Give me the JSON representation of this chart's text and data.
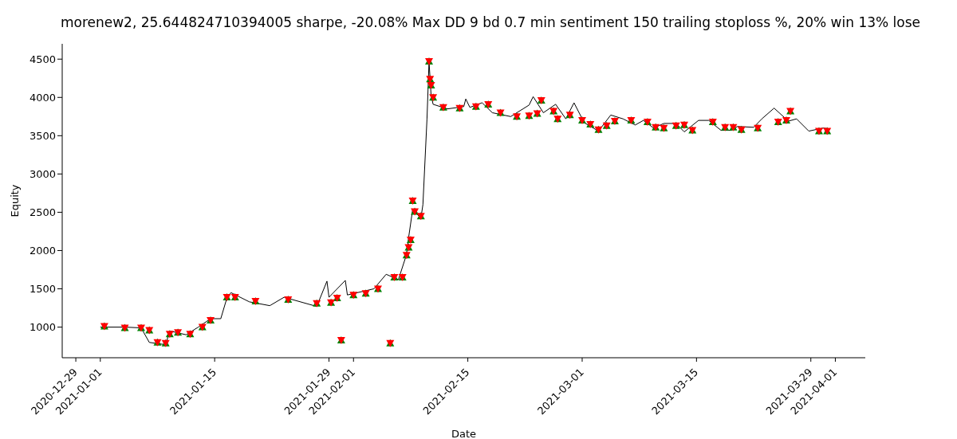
{
  "chart_data": {
    "type": "line",
    "title": "morenew2, 25.644824710394005 sharpe, -20.08% Max DD 9 bd 0.7 min sentiment 150 trailing stoploss %, 20% win 13% lose",
    "xlabel": "Date",
    "ylabel": "Equity",
    "xlim": [
      "2020-12-27T08:00",
      "2021-04-04T16:00"
    ],
    "xticks": [
      "2020-12-29",
      "2021-01-01",
      "2021-01-15",
      "2021-01-29",
      "2021-02-01",
      "2021-02-15",
      "2021-03-01",
      "2021-03-15",
      "2021-03-29",
      "2021-04-01"
    ],
    "ylim": [
      600,
      4700
    ],
    "yticks": [
      1000,
      1500,
      2000,
      2500,
      3000,
      3500,
      4000,
      4500
    ],
    "grid": false,
    "legend": false,
    "series": [
      {
        "color": "#000000",
        "marker": "none",
        "line_style": "solid",
        "x": [
          "2021-01-01T00:00",
          "2021-01-04T00:00",
          "2021-01-06T00:00",
          "2021-01-07T00:00",
          "2021-01-09T00:00",
          "2021-01-09T12:00",
          "2021-01-11T12:00",
          "2021-01-13T00:00",
          "2021-01-14T12:00",
          "2021-01-15T18:00",
          "2021-01-16T12:00",
          "2021-01-17T00:00",
          "2021-01-19T06:00",
          "2021-01-21T18:00",
          "2021-01-23T12:00",
          "2021-01-27T12:00",
          "2021-01-28T18:00",
          "2021-01-29T00:00",
          "2021-01-31T00:00",
          "2021-01-31T06:00",
          "2021-02-03T12:00",
          "2021-02-05T00:00",
          "2021-02-06T12:00",
          "2021-02-07T12:00",
          "2021-02-07T18:00",
          "2021-02-08T06:00",
          "2021-02-09T06:00",
          "2021-02-09T12:00",
          "2021-02-10T00:00",
          "2021-02-10T06:00",
          "2021-02-10T12:00",
          "2021-02-10T18:00",
          "2021-02-12T12:00",
          "2021-02-14T12:00",
          "2021-02-14T18:00",
          "2021-02-15T06:00",
          "2021-02-16T18:00",
          "2021-02-18T00:00",
          "2021-02-20T06:00",
          "2021-02-22T12:00",
          "2021-02-23T00:00",
          "2021-02-24T06:00",
          "2021-02-25T18:00",
          "2021-02-27T00:00",
          "2021-02-28T00:00",
          "2021-03-01T06:00",
          "2021-03-03T00:00",
          "2021-03-04T12:00",
          "2021-03-06T00:00",
          "2021-03-07T12:00",
          "2021-03-08T12:00",
          "2021-03-09T18:00",
          "2021-03-11T00:00",
          "2021-03-12T12:00",
          "2021-03-13T12:00",
          "2021-03-15T06:00",
          "2021-03-16T12:00",
          "2021-03-18T00:00",
          "2021-03-19T06:00",
          "2021-03-20T00:00",
          "2021-03-22T00:00",
          "2021-03-23T00:00",
          "2021-03-24T12:00",
          "2021-03-26T06:00",
          "2021-03-27T06:00",
          "2021-03-28T18:00",
          "2021-03-30T12:00",
          "2021-03-31T06:00"
        ],
        "values": [
          1000,
          1000,
          990,
          800,
          770,
          950,
          900,
          1000,
          1110,
          1110,
          1380,
          1450,
          1330,
          1280,
          1390,
          1270,
          1600,
          1390,
          1610,
          1420,
          1500,
          1690,
          1620,
          1950,
          2170,
          2540,
          2420,
          2600,
          3720,
          4470,
          4030,
          3910,
          3850,
          3880,
          3980,
          3870,
          3930,
          3800,
          3750,
          3900,
          4010,
          3800,
          3910,
          3720,
          3930,
          3670,
          3560,
          3770,
          3720,
          3640,
          3700,
          3600,
          3660,
          3660,
          3550,
          3700,
          3700,
          3570,
          3570,
          3620,
          3610,
          3720,
          3860,
          3690,
          3720,
          3560,
          3600,
          3590
        ]
      },
      {
        "type": "scatter",
        "color": "#008000",
        "marker": "triangle",
        "x": [
          "2021-01-01T12:00",
          "2021-01-04T00:00",
          "2021-01-06T00:00",
          "2021-01-07T00:00",
          "2021-01-08T00:00",
          "2021-01-09T00:00",
          "2021-01-09T12:00",
          "2021-01-10T12:00",
          "2021-01-12T00:00",
          "2021-01-13T12:00",
          "2021-01-14T12:00",
          "2021-01-16T12:00",
          "2021-01-17T12:00",
          "2021-01-20T00:00",
          "2021-01-24T00:00",
          "2021-01-27T12:00",
          "2021-01-29T06:00",
          "2021-01-30T00:00",
          "2021-01-30T12:00",
          "2021-02-01T00:00",
          "2021-02-02T12:00",
          "2021-02-04T00:00",
          "2021-02-05T12:00",
          "2021-02-06T00:00",
          "2021-02-07T00:00",
          "2021-02-07T12:00",
          "2021-02-07T18:00",
          "2021-02-08T00:00",
          "2021-02-08T06:00",
          "2021-02-08T12:00",
          "2021-02-09T06:00",
          "2021-02-10T06:00",
          "2021-02-10T09:00",
          "2021-02-10T12:00",
          "2021-02-10T18:00",
          "2021-02-12T00:00",
          "2021-02-14T00:00",
          "2021-02-16T00:00",
          "2021-02-17T12:00",
          "2021-02-19T00:00",
          "2021-02-21T00:00",
          "2021-02-22T12:00",
          "2021-02-23T12:00",
          "2021-02-24T00:00",
          "2021-02-25T12:00",
          "2021-02-26T00:00",
          "2021-02-27T12:00",
          "2021-03-01T00:00",
          "2021-03-02T00:00",
          "2021-03-03T00:00",
          "2021-03-04T00:00",
          "2021-03-05T00:00",
          "2021-03-07T00:00",
          "2021-03-09T00:00",
          "2021-03-10T00:00",
          "2021-03-11T00:00",
          "2021-03-12T12:00",
          "2021-03-13T12:00",
          "2021-03-14T12:00",
          "2021-03-17T00:00",
          "2021-03-18T12:00",
          "2021-03-19T12:00",
          "2021-03-20T12:00",
          "2021-03-22T12:00",
          "2021-03-25T00:00",
          "2021-03-26T00:00",
          "2021-03-26T12:00",
          "2021-03-30T00:00",
          "2021-03-31T00:00"
        ],
        "values": [
          1010,
          990,
          990,
          960,
          800,
          790,
          910,
          930,
          910,
          1000,
          1090,
          1390,
          1390,
          1340,
          1360,
          1310,
          1320,
          1380,
          830,
          1420,
          1440,
          1500,
          790,
          1650,
          1650,
          1940,
          2040,
          2140,
          2650,
          2510,
          2450,
          4470,
          4240,
          4160,
          4000,
          3870,
          3860,
          3880,
          3910,
          3800,
          3750,
          3760,
          3790,
          3960,
          3820,
          3720,
          3770,
          3700,
          3650,
          3580,
          3630,
          3690,
          3700,
          3680,
          3610,
          3600,
          3630,
          3640,
          3570,
          3680,
          3610,
          3610,
          3580,
          3600,
          3680,
          3700,
          3820,
          3560,
          3560
        ]
      },
      {
        "type": "scatter",
        "color": "#ff0000",
        "marker": "triangle_down",
        "x": [
          "2021-01-01T12:00",
          "2021-01-04T00:00",
          "2021-01-06T00:00",
          "2021-01-07T00:00",
          "2021-01-08T00:00",
          "2021-01-09T00:00",
          "2021-01-09T12:00",
          "2021-01-10T12:00",
          "2021-01-12T00:00",
          "2021-01-13T12:00",
          "2021-01-14T12:00",
          "2021-01-16T12:00",
          "2021-01-17T12:00",
          "2021-01-20T00:00",
          "2021-01-24T00:00",
          "2021-01-27T12:00",
          "2021-01-29T06:00",
          "2021-01-30T00:00",
          "2021-01-30T12:00",
          "2021-02-01T00:00",
          "2021-02-02T12:00",
          "2021-02-04T00:00",
          "2021-02-05T12:00",
          "2021-02-06T00:00",
          "2021-02-07T00:00",
          "2021-02-07T12:00",
          "2021-02-07T18:00",
          "2021-02-08T00:00",
          "2021-02-08T06:00",
          "2021-02-08T12:00",
          "2021-02-09T06:00",
          "2021-02-10T06:00",
          "2021-02-10T09:00",
          "2021-02-10T12:00",
          "2021-02-10T18:00",
          "2021-02-12T00:00",
          "2021-02-14T00:00",
          "2021-02-16T00:00",
          "2021-02-17T12:00",
          "2021-02-19T00:00",
          "2021-02-21T00:00",
          "2021-02-22T12:00",
          "2021-02-23T12:00",
          "2021-02-24T00:00",
          "2021-02-25T12:00",
          "2021-02-26T00:00",
          "2021-02-27T12:00",
          "2021-03-01T00:00",
          "2021-03-02T00:00",
          "2021-03-03T00:00",
          "2021-03-04T00:00",
          "2021-03-05T00:00",
          "2021-03-07T00:00",
          "2021-03-09T00:00",
          "2021-03-10T00:00",
          "2021-03-11T00:00",
          "2021-03-12T12:00",
          "2021-03-13T12:00",
          "2021-03-14T12:00",
          "2021-03-17T00:00",
          "2021-03-18T12:00",
          "2021-03-19T12:00",
          "2021-03-20T12:00",
          "2021-03-22T12:00",
          "2021-03-25T00:00",
          "2021-03-26T00:00",
          "2021-03-26T12:00",
          "2021-03-30T00:00",
          "2021-03-31T00:00"
        ],
        "values": [
          1010,
          990,
          990,
          960,
          800,
          790,
          910,
          930,
          910,
          1000,
          1090,
          1390,
          1390,
          1340,
          1360,
          1310,
          1320,
          1380,
          830,
          1420,
          1440,
          1500,
          790,
          1650,
          1650,
          1940,
          2040,
          2140,
          2650,
          2510,
          2450,
          4470,
          4240,
          4160,
          4000,
          3870,
          3860,
          3880,
          3910,
          3800,
          3750,
          3760,
          3790,
          3960,
          3820,
          3720,
          3770,
          3700,
          3650,
          3580,
          3630,
          3690,
          3700,
          3680,
          3610,
          3600,
          3630,
          3640,
          3570,
          3680,
          3610,
          3610,
          3580,
          3600,
          3680,
          3700,
          3820,
          3560,
          3560
        ]
      }
    ]
  }
}
